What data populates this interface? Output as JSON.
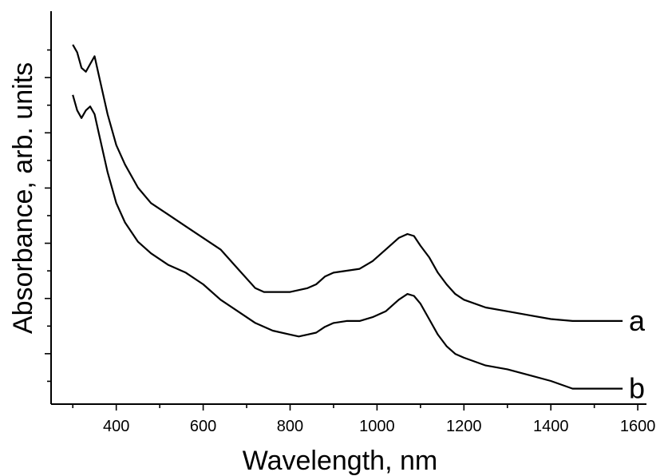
{
  "chart_data": {
    "type": "line",
    "xlabel": "Wavelength, nm",
    "ylabel": "Absorbance, arb. units",
    "xlim": [
      250,
      1620
    ],
    "ylim": [
      0,
      1
    ],
    "x_ticks": [
      400,
      600,
      800,
      1000,
      1200,
      1400,
      1600
    ],
    "x_tick_labels": [
      "400",
      "600",
      "800",
      "1000",
      "1200",
      "1400",
      "1600"
    ],
    "y_minor_tick_count": 13,
    "y_tick_labels_shown": false,
    "grid": false,
    "series": [
      {
        "name": "a",
        "x": [
          300,
          310,
          320,
          330,
          340,
          350,
          360,
          380,
          400,
          420,
          450,
          480,
          520,
          560,
          600,
          640,
          680,
          720,
          740,
          760,
          780,
          800,
          820,
          840,
          860,
          880,
          900,
          930,
          960,
          990,
          1020,
          1050,
          1070,
          1085,
          1100,
          1120,
          1140,
          1160,
          1180,
          1200,
          1250,
          1300,
          1350,
          1400,
          1450,
          1500,
          1550,
          1565
        ],
        "values": [
          0.93,
          0.91,
          0.87,
          0.86,
          0.88,
          0.9,
          0.85,
          0.75,
          0.67,
          0.62,
          0.56,
          0.52,
          0.49,
          0.46,
          0.43,
          0.4,
          0.35,
          0.3,
          0.29,
          0.29,
          0.29,
          0.29,
          0.295,
          0.3,
          0.31,
          0.33,
          0.34,
          0.345,
          0.35,
          0.37,
          0.4,
          0.43,
          0.44,
          0.435,
          0.41,
          0.38,
          0.34,
          0.31,
          0.285,
          0.27,
          0.25,
          0.24,
          0.23,
          0.22,
          0.215,
          0.215,
          0.215,
          0.215
        ]
      },
      {
        "name": "b",
        "x": [
          300,
          310,
          320,
          330,
          340,
          350,
          360,
          380,
          400,
          420,
          450,
          480,
          520,
          560,
          600,
          640,
          680,
          720,
          760,
          800,
          820,
          840,
          860,
          880,
          900,
          930,
          960,
          990,
          1020,
          1050,
          1070,
          1085,
          1100,
          1120,
          1140,
          1160,
          1180,
          1200,
          1250,
          1300,
          1350,
          1400,
          1450,
          1500,
          1550,
          1565
        ],
        "values": [
          0.8,
          0.76,
          0.74,
          0.76,
          0.77,
          0.75,
          0.7,
          0.6,
          0.52,
          0.47,
          0.42,
          0.39,
          0.36,
          0.34,
          0.31,
          0.27,
          0.24,
          0.21,
          0.19,
          0.18,
          0.175,
          0.18,
          0.185,
          0.2,
          0.21,
          0.215,
          0.215,
          0.225,
          0.24,
          0.27,
          0.285,
          0.28,
          0.26,
          0.22,
          0.18,
          0.15,
          0.13,
          0.12,
          0.1,
          0.09,
          0.075,
          0.06,
          0.04,
          0.04,
          0.04,
          0.04
        ]
      }
    ]
  }
}
